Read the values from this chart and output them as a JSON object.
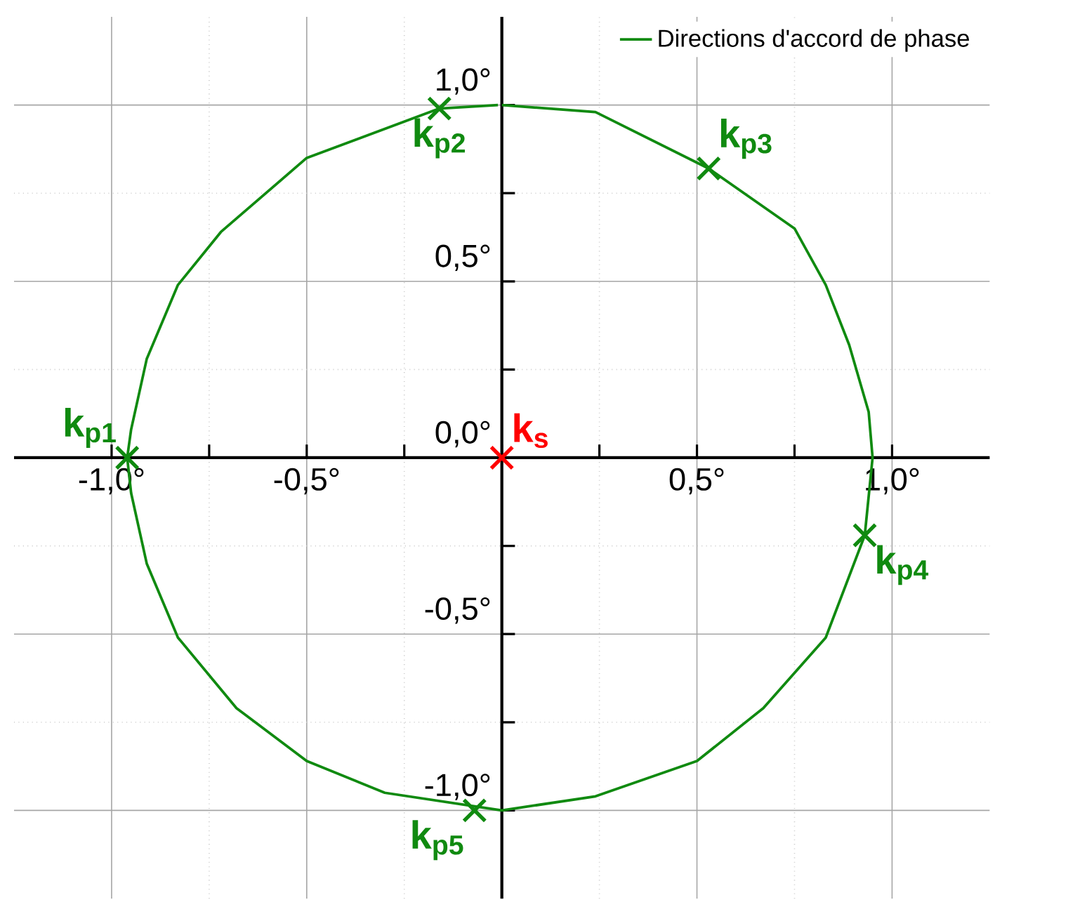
{
  "chart_data": {
    "type": "line",
    "xlim": [
      -1.25,
      1.25
    ],
    "ylim": [
      -1.25,
      1.25
    ],
    "xticks": [
      {
        "value": -1,
        "label": "-1,0°"
      },
      {
        "value": -0.5,
        "label": "-0,5°"
      },
      {
        "value": 0,
        "label": null
      },
      {
        "value": 0.5,
        "label": "0,5°"
      },
      {
        "value": 1,
        "label": "1,0°"
      }
    ],
    "yticks": [
      {
        "value": -1,
        "label": "-1,0°"
      },
      {
        "value": -0.5,
        "label": "-0,5°"
      },
      {
        "value": 0,
        "label": "0,0°"
      },
      {
        "value": 0.5,
        "label": "0,5°"
      },
      {
        "value": 1,
        "label": "1,0°"
      }
    ],
    "grid": true,
    "legend": "top right",
    "series": [
      {
        "name": "Directions d'accord de phase",
        "type": "line",
        "color": "#108a10",
        "marker": "none",
        "x": [
          0,
          0.24,
          0.53,
          0.75,
          0.83,
          0.89,
          0.94,
          0.95,
          0.93,
          0.83,
          0.67,
          0.5,
          0.24,
          0,
          -0.3,
          -0.5,
          -0.68,
          -0.83,
          -0.91,
          -0.95,
          -0.96,
          -0.95,
          -0.91,
          -0.83,
          -0.72,
          -0.5,
          -0.16,
          -0.01
        ],
        "values": [
          1.0,
          0.98,
          0.82,
          0.65,
          0.49,
          0.32,
          0.13,
          0,
          -0.22,
          -0.51,
          -0.71,
          -0.86,
          -0.96,
          -1.0,
          -0.95,
          -0.86,
          -0.71,
          -0.51,
          -0.3,
          -0.1,
          0,
          0.08,
          0.28,
          0.49,
          0.64,
          0.85,
          0.99,
          1.0
        ]
      },
      {
        "name": "k$_{p1}$",
        "type": "scatter",
        "color": "#108a10",
        "marker": "cross",
        "x": [
          -0.96
        ],
        "values": [
          0
        ]
      },
      {
        "name": "k$_{p2}$",
        "type": "scatter",
        "color": "#108a10",
        "marker": "cross",
        "x": [
          -0.16
        ],
        "values": [
          0.99
        ]
      },
      {
        "name": "k$_{p3}$",
        "type": "scatter",
        "color": "#108a10",
        "marker": "cross",
        "x": [
          0.53
        ],
        "values": [
          0.82
        ]
      },
      {
        "name": "k$_{p4}$",
        "type": "scatter",
        "color": "#108a10",
        "marker": "cross",
        "x": [
          0.93
        ],
        "values": [
          -0.22
        ]
      },
      {
        "name": "k$_{p5}$",
        "type": "scatter",
        "color": "#108a10",
        "marker": "cross",
        "x": [
          -0.07
        ],
        "values": [
          -1.0
        ]
      },
      {
        "name": "k$_{s}$",
        "type": "scatter",
        "color": "#ff0000",
        "marker": "cross",
        "x": [
          0
        ],
        "values": [
          0
        ]
      }
    ]
  }
}
